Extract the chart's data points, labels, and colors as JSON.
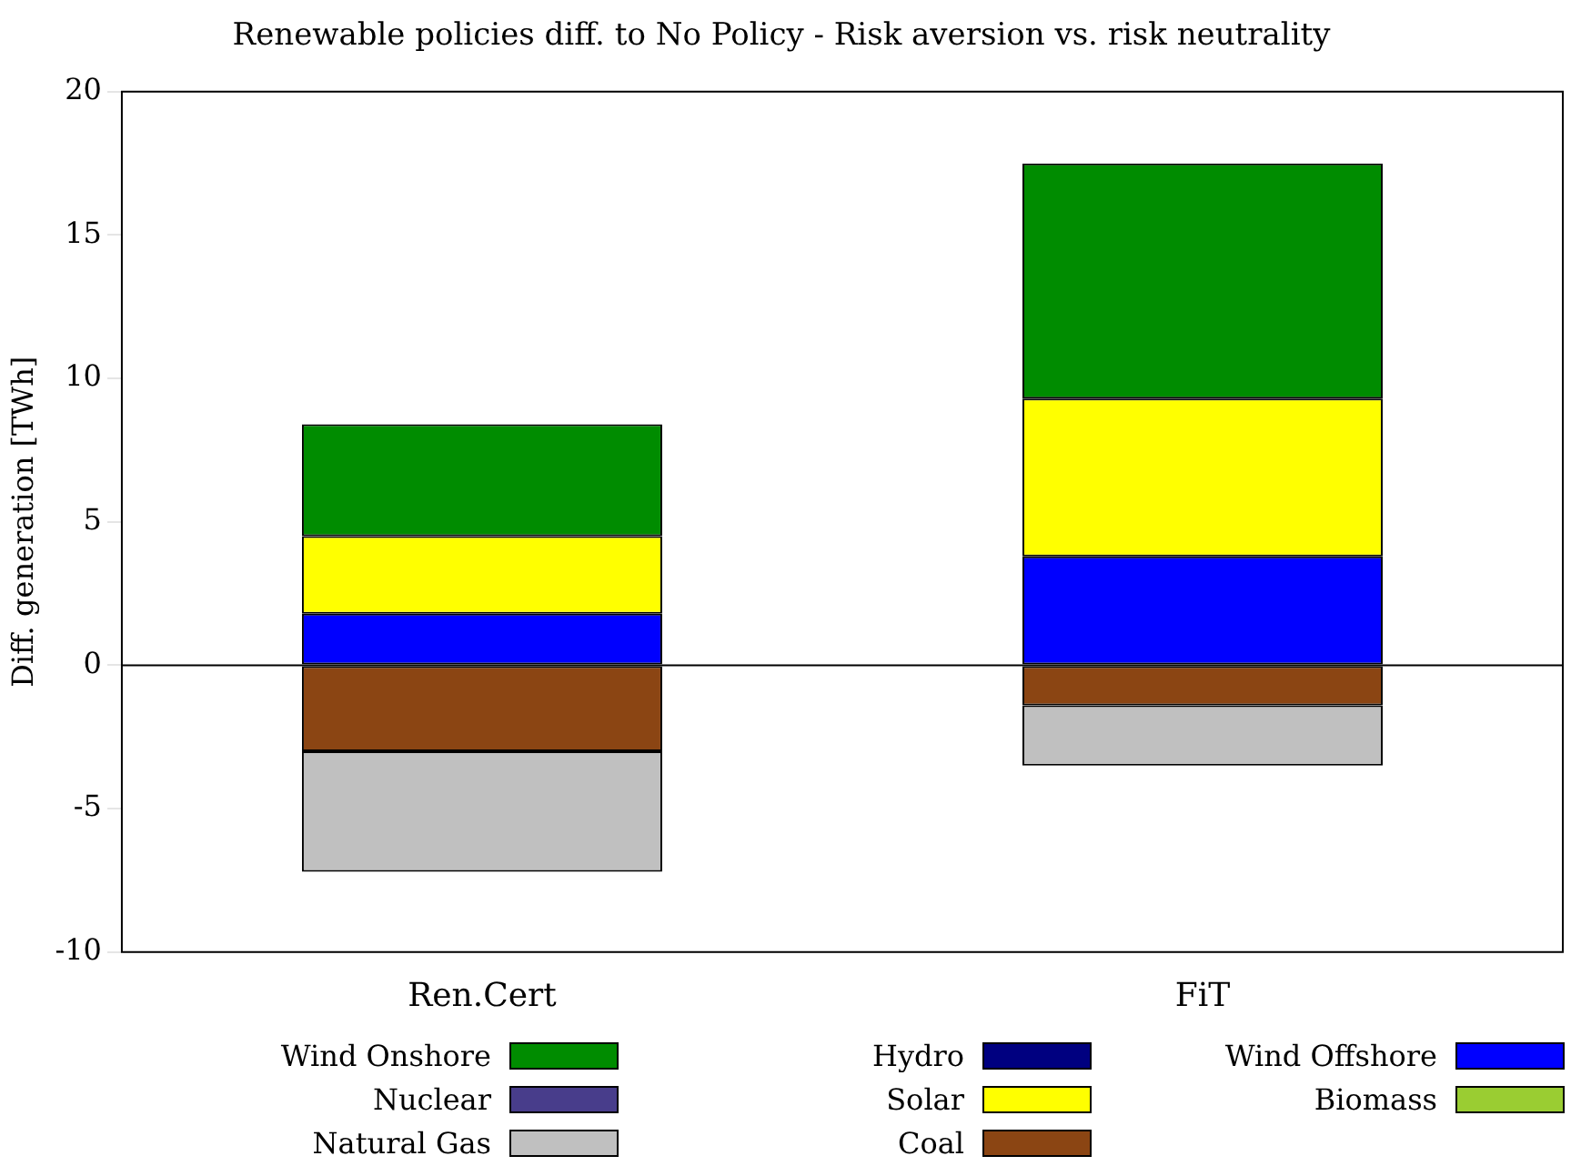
{
  "chart_data": {
    "type": "bar",
    "title": "Renewable policies diff. to No Policy - Risk aversion vs. risk neutrality",
    "ylabel": "Diff. generation [TWh]",
    "categories": [
      "Ren.Cert",
      "FiT"
    ],
    "stacked": true,
    "legend": "bottom",
    "grid": false,
    "ylim": [
      -10,
      20
    ],
    "yticks": [
      -10,
      -5,
      0,
      5,
      10,
      15,
      20
    ],
    "ref_lines": [
      {
        "axis": "y",
        "value": 0,
        "color": "#000000"
      }
    ],
    "series": [
      {
        "name": "Biomass",
        "color": "#9acd32",
        "values": [
          0,
          0
        ]
      },
      {
        "name": "Wind Offshore",
        "color": "#0000ff",
        "values": [
          1.8,
          3.8
        ]
      },
      {
        "name": "Coal",
        "color": "#8b4513",
        "values": [
          -3.0,
          -1.4
        ]
      },
      {
        "name": "Solar",
        "color": "#ffff00",
        "values": [
          2.7,
          5.5
        ]
      },
      {
        "name": "Hydro",
        "color": "#000080",
        "values": [
          0,
          0
        ]
      },
      {
        "name": "Natural Gas",
        "color": "#c0c0c0",
        "values": [
          -4.2,
          -2.1
        ]
      },
      {
        "name": "Nuclear",
        "color": "#483d8b",
        "values": [
          0,
          0
        ]
      },
      {
        "name": "Wind Onshore",
        "color": "#008c00",
        "values": [
          3.9,
          8.2
        ]
      }
    ]
  }
}
